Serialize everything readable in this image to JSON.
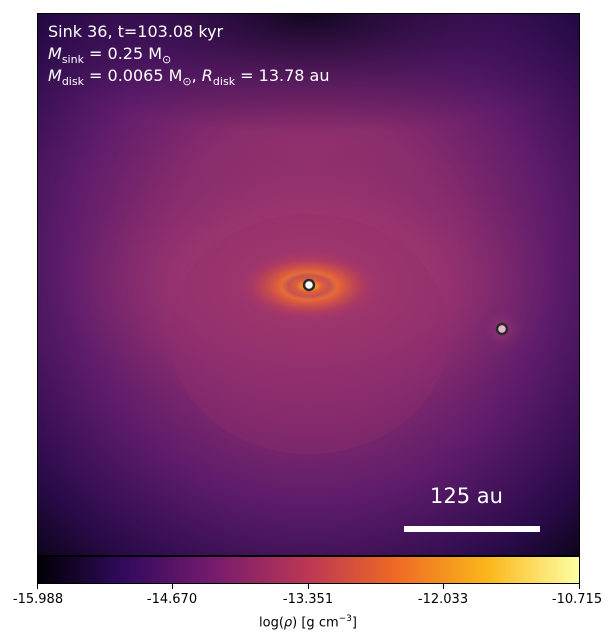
{
  "panel": {
    "title": "Sink 36, t=103.08 kyr",
    "msink_var": "M",
    "msink_sub": "sink",
    "msink_value": " = 0.25 M",
    "msink_unit_sub": "⊙",
    "mdisk_var": "M",
    "mdisk_sub": "disk",
    "mdisk_value": " = 0.0065 M",
    "mdisk_unit_sub": "⊙",
    "separator": ", ",
    "rdisk_var": "R",
    "rdisk_sub": "disk",
    "rdisk_value": " = 13.78 au"
  },
  "scalebar": {
    "label": "125 au"
  },
  "colorbar": {
    "ticks": [
      "-15.988",
      "-14.670",
      "-13.351",
      "-12.033",
      "-10.715"
    ],
    "label_prefix": "log(",
    "label_rho": "ρ",
    "label_suffix": ") [g cm",
    "label_exp": "−3",
    "label_end": "]",
    "colors": [
      "#000004",
      "#320a5e",
      "#781c6d",
      "#bc3754",
      "#ed6925",
      "#fbb61a",
      "#fcffa4"
    ]
  },
  "sinks": [
    {
      "name": "central",
      "fill": "#ffffff",
      "stroke": "#2a2a2a"
    },
    {
      "name": "companion",
      "fill": "#e4b8cc",
      "stroke": "#2a2a2a"
    }
  ]
}
